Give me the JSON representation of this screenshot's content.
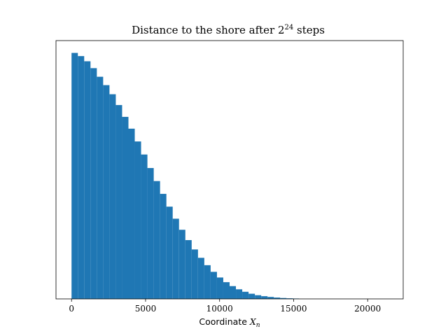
{
  "chart_data": {
    "type": "bar",
    "title_prefix": "Distance to the shore after ",
    "title_base": "2",
    "title_exponent": "24",
    "title_suffix": " steps",
    "xlabel_text": "Coordinate ",
    "xlabel_var": "X",
    "xlabel_sub": "n",
    "xlim": [
      -1050,
      22400
    ],
    "ylim": [
      0,
      1.05
    ],
    "bin_width": 427,
    "bin_start": 0,
    "values": [
      1.0,
      0.987,
      0.966,
      0.938,
      0.903,
      0.869,
      0.832,
      0.788,
      0.74,
      0.692,
      0.64,
      0.587,
      0.532,
      0.479,
      0.427,
      0.375,
      0.326,
      0.281,
      0.239,
      0.201,
      0.167,
      0.137,
      0.11,
      0.087,
      0.068,
      0.052,
      0.039,
      0.029,
      0.021,
      0.015,
      0.011,
      0.008,
      0.0055,
      0.0037,
      0.0025,
      0.0016
    ],
    "x_ticks": [
      0,
      5000,
      10000,
      15000,
      20000
    ],
    "x_tick_labels": [
      "0",
      "5000",
      "10000",
      "15000",
      "20000"
    ],
    "y_ticks": "none",
    "grid": false,
    "bar_color": "#1f77b4"
  }
}
